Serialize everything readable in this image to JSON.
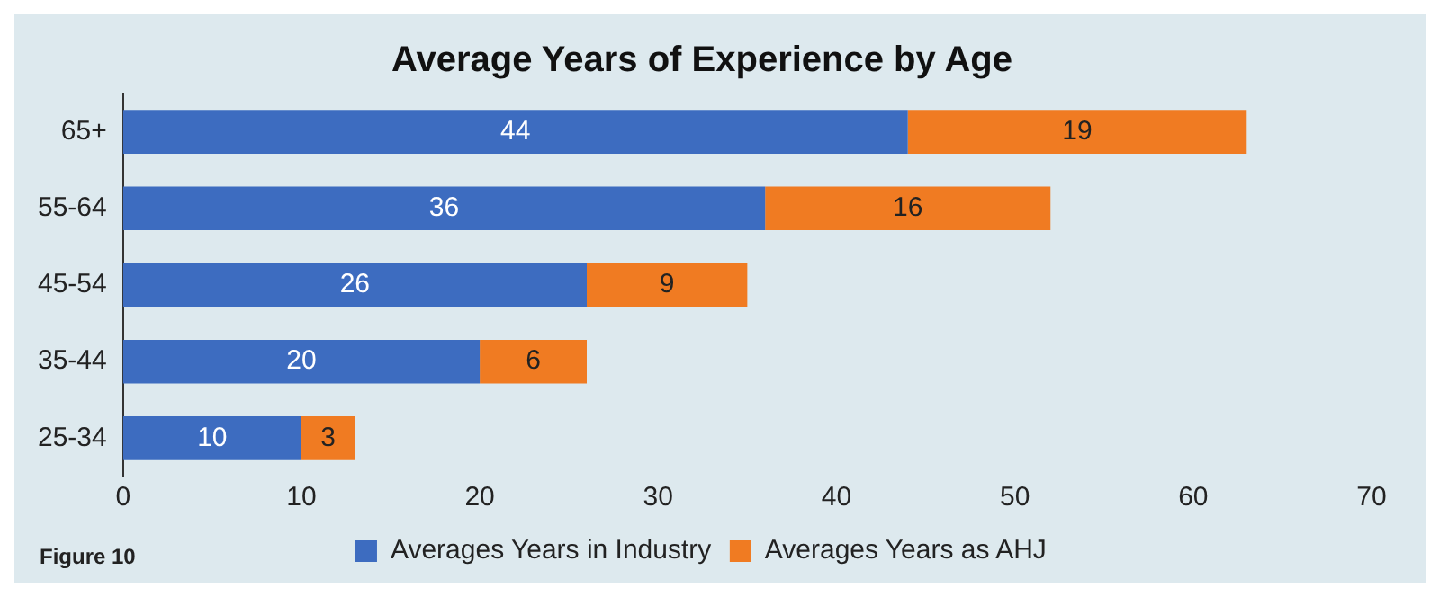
{
  "chart_data": {
    "type": "bar",
    "orientation": "horizontal",
    "stacked": true,
    "title": "Average Years of Experience by Age",
    "categories": [
      "65+",
      "55-64",
      "45-54",
      "35-44",
      "25-34"
    ],
    "series": [
      {
        "name": "Averages Years in Industry",
        "color": "#3d6cc0",
        "values": [
          44,
          36,
          26,
          20,
          10
        ]
      },
      {
        "name": "Averages Years as AHJ",
        "color": "#f07b22",
        "values": [
          19,
          16,
          9,
          6,
          3
        ]
      }
    ],
    "xlim": [
      0,
      70
    ],
    "xticks": [
      0,
      10,
      20,
      30,
      40,
      50,
      60,
      70
    ],
    "grid": false,
    "legend": "bottom",
    "data_labels": true,
    "annotations": [
      "Figure 10"
    ]
  }
}
